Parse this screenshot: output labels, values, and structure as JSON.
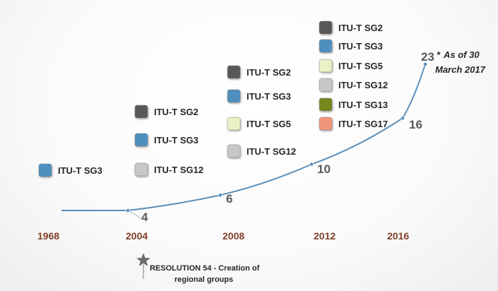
{
  "chart_data": {
    "type": "line",
    "title": "",
    "xlabel": "",
    "ylabel": "",
    "x_tick_labels": [
      "1968",
      "2004",
      "2008",
      "2012",
      "2016"
    ],
    "line_color": "#5b8fb9",
    "points": [
      {
        "x": "1968",
        "y": null,
        "label": ""
      },
      {
        "x": "2004",
        "y": 4,
        "label": "4"
      },
      {
        "x": "2008",
        "y": 6,
        "label": "6"
      },
      {
        "x": "2012",
        "y": 10,
        "label": "10"
      },
      {
        "x": "2016",
        "y": 16,
        "label": "16"
      },
      {
        "x": "2017-03-30",
        "y": 23,
        "label": "23"
      }
    ],
    "note_marker": "*",
    "note_lines": [
      "As of 30",
      "March 2017"
    ],
    "annotation": {
      "icon": "star-icon",
      "lines": [
        "RESOLUTION 54 - Creation of",
        "regional groups"
      ]
    },
    "legend_colors": {
      "SG2": "#595959",
      "SG3": "#4f8fbf",
      "SG5": "#ebf1c4",
      "SG12": "#c8c8c8",
      "SG13": "#77861f",
      "SG17": "#f0957a"
    },
    "group_stacks": [
      {
        "items": [
          {
            "code": "SG3",
            "label": "ITU-T SG3"
          }
        ]
      },
      {
        "items": [
          {
            "code": "SG2",
            "label": "ITU-T SG2"
          },
          {
            "code": "SG3",
            "label": "ITU-T SG3"
          },
          {
            "code": "SG12",
            "label": "ITU-T SG12"
          }
        ]
      },
      {
        "items": [
          {
            "code": "SG2",
            "label": "ITU-T SG2"
          },
          {
            "code": "SG3",
            "label": "ITU-T SG3"
          },
          {
            "code": "SG5",
            "label": "ITU-T SG5"
          },
          {
            "code": "SG12",
            "label": "ITU-T SG12"
          }
        ]
      },
      {
        "items": [
          {
            "code": "SG2",
            "label": "ITU-T SG2"
          },
          {
            "code": "SG3",
            "label": "ITU-T SG3"
          },
          {
            "code": "SG5",
            "label": "ITU-T SG5"
          },
          {
            "code": "SG12",
            "label": "ITU-T SG12"
          },
          {
            "code": "SG13",
            "label": "ITU-T SG13"
          },
          {
            "code": "SG17",
            "label": "ITU-T SG17"
          }
        ]
      }
    ]
  }
}
